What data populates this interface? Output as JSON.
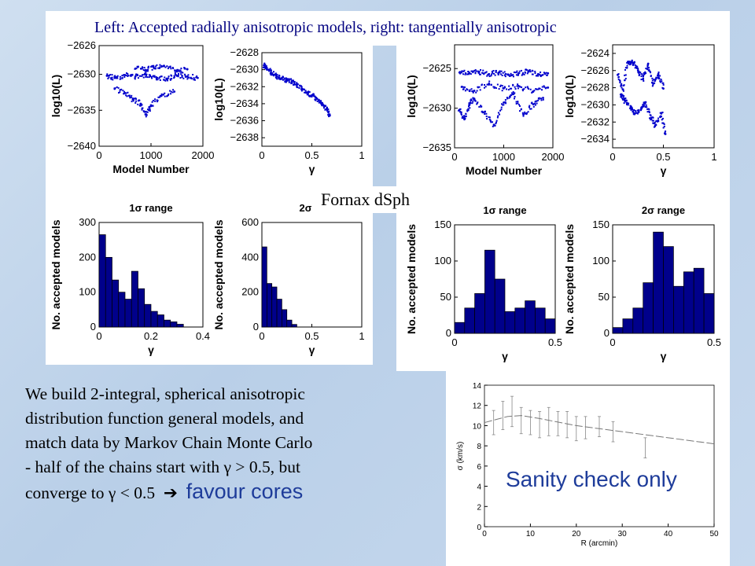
{
  "title": "Left: Accepted radially anisotropic models, right: tangentially anisotropic",
  "center_label": "Fornax dSph",
  "body_text": [
    "We build 2-integral, spherical anisotropic",
    "distribution function general models, and",
    "match data by Markov Chain Monte Carlo",
    "- half of the chains start with γ > 0.5, but",
    "converge to γ < 0.5"
  ],
  "arrow_glyph": "➔",
  "favour_text": "favour cores",
  "sanity_text": "Sanity check only",
  "colors": {
    "points": "#0000cc",
    "bars": "#00008b",
    "highlight_text": "#1e3c9a",
    "title_text": "#000080"
  },
  "chart_data": [
    {
      "id": "radial-trace",
      "type": "scatter",
      "xlabel": "Model Number",
      "ylabel": "log10(L)",
      "xlim": [
        0,
        2000
      ],
      "ylim": [
        -2640,
        -2626
      ],
      "xticks": [
        "0",
        "1000",
        "2000"
      ],
      "yticks": [
        "−2640",
        "−2635",
        "−2630",
        "−2626"
      ],
      "series": [
        {
          "x": [
            150,
            300,
            500,
            700,
            900,
            1100,
            1300,
            1500,
            1700,
            1900
          ],
          "y": [
            -2630.2,
            -2630.5,
            -2630.1,
            -2630.3,
            -2630.0,
            -2630.4,
            -2630.6,
            -2630.2,
            -2630.3,
            -2630.5
          ]
        },
        {
          "x": [
            300,
            500,
            650,
            800,
            900,
            1000,
            1200,
            1450
          ],
          "y": [
            -2632,
            -2632.6,
            -2633.5,
            -2634.1,
            -2635.6,
            -2634.3,
            -2633.0,
            -2632.4
          ]
        },
        {
          "x": [
            700,
            900,
            1050,
            1250,
            1500,
            1700
          ],
          "y": [
            -2629.2,
            -2629.4,
            -2629.0,
            -2628.8,
            -2629.6,
            -2629.3
          ]
        }
      ]
    },
    {
      "id": "radial-gamma",
      "type": "scatter",
      "xlabel": "γ",
      "ylabel": "log10(L)",
      "xlim": [
        0,
        1
      ],
      "ylim": [
        -2639,
        -2628
      ],
      "xticks": [
        "0",
        "0.5",
        "1"
      ],
      "yticks": [
        "−2638",
        "−2636",
        "−2634",
        "−2632",
        "−2630",
        "−2628"
      ],
      "series": [
        {
          "x": [
            0.02,
            0.05,
            0.1,
            0.15,
            0.2,
            0.25,
            0.3,
            0.35,
            0.4,
            0.45,
            0.5,
            0.55,
            0.6,
            0.65,
            0.68
          ],
          "y": [
            -2629.5,
            -2629.8,
            -2630.4,
            -2630.8,
            -2631.0,
            -2631.3,
            -2631.4,
            -2631.8,
            -2632.3,
            -2632.7,
            -2633.0,
            -2633.4,
            -2634.1,
            -2634.6,
            -2635.4
          ]
        }
      ]
    },
    {
      "id": "tangential-trace",
      "type": "scatter",
      "xlabel": "Model Number",
      "ylabel": "log10(L)",
      "xlim": [
        0,
        2000
      ],
      "ylim": [
        -2635,
        -2622
      ],
      "xticks": [
        "0",
        "1000",
        "2000"
      ],
      "yticks": [
        "−2635",
        "−2630",
        "−2625"
      ],
      "series": [
        {
          "x": [
            100,
            300,
            500,
            700,
            900,
            1100,
            1300,
            1500,
            1700,
            1900
          ],
          "y": [
            -2625.5,
            -2625.6,
            -2625.4,
            -2625.7,
            -2625.5,
            -2625.8,
            -2625.6,
            -2625.4,
            -2625.7,
            -2625.6
          ]
        },
        {
          "x": [
            100,
            200,
            300,
            400,
            600,
            800,
            1000,
            1200,
            1400,
            1600,
            1800
          ],
          "y": [
            -2630.2,
            -2631.4,
            -2629.6,
            -2628.8,
            -2630.5,
            -2632.1,
            -2629.3,
            -2628.2,
            -2630.8,
            -2629.5,
            -2628.7
          ]
        },
        {
          "x": [
            150,
            400,
            700,
            1000,
            1300,
            1600,
            1900
          ],
          "y": [
            -2627.3,
            -2627.8,
            -2626.9,
            -2627.5,
            -2627.2,
            -2627.9,
            -2627.4
          ]
        }
      ]
    },
    {
      "id": "tangential-gamma",
      "type": "scatter",
      "xlabel": "γ",
      "ylabel": "log10(L)",
      "xlim": [
        0,
        1
      ],
      "ylim": [
        -2635,
        -2623
      ],
      "xticks": [
        "0",
        "0.5",
        "1"
      ],
      "yticks": [
        "−2634",
        "−2632",
        "−2630",
        "−2628",
        "−2626",
        "−2624"
      ],
      "series": [
        {
          "x": [
            0.05,
            0.1,
            0.15,
            0.2,
            0.25,
            0.3,
            0.35,
            0.4,
            0.45,
            0.5
          ],
          "y": [
            -2626.5,
            -2628.2,
            -2625.0,
            -2625.1,
            -2626.0,
            -2627.0,
            -2625.2,
            -2627.5,
            -2626.4,
            -2628.1
          ]
        },
        {
          "x": [
            0.08,
            0.12,
            0.18,
            0.22,
            0.28,
            0.32,
            0.38,
            0.42,
            0.48,
            0.52
          ],
          "y": [
            -2628.8,
            -2629.5,
            -2630.3,
            -2631.0,
            -2630.5,
            -2629.8,
            -2631.5,
            -2632.4,
            -2631.0,
            -2633.4
          ]
        }
      ]
    },
    {
      "id": "radial-hist-1s",
      "type": "bar",
      "title": "1σ range",
      "xlabel": "γ",
      "ylabel": "No. accepted models",
      "xlim": [
        0,
        0.4
      ],
      "ylim": [
        0,
        300
      ],
      "xticks": [
        "0",
        "0.2",
        "0.4"
      ],
      "yticks": [
        "0",
        "100",
        "200",
        "300"
      ],
      "bin_width": 0.025,
      "values": [
        265,
        200,
        135,
        100,
        80,
        160,
        110,
        65,
        45,
        35,
        20,
        15,
        8
      ]
    },
    {
      "id": "radial-hist-2s",
      "type": "bar",
      "title": "2σ ra",
      "xlabel": "γ",
      "ylabel": "No. accepted models",
      "xlim": [
        0,
        1
      ],
      "ylim": [
        0,
        600
      ],
      "xticks": [
        "0",
        "0.5",
        "1"
      ],
      "yticks": [
        "0",
        "200",
        "400",
        "600"
      ],
      "bin_width": 0.05,
      "values": [
        460,
        250,
        230,
        160,
        100,
        40,
        15
      ]
    },
    {
      "id": "tangential-hist-1s",
      "type": "bar",
      "title": "1σ range",
      "xlabel": "γ",
      "ylabel": "No. accepted models",
      "xlim": [
        0,
        0.5
      ],
      "ylim": [
        0,
        150
      ],
      "xticks": [
        "0",
        "0.5"
      ],
      "yticks": [
        "0",
        "50",
        "100",
        "150"
      ],
      "bin_width": 0.05,
      "values": [
        15,
        35,
        55,
        115,
        75,
        30,
        35,
        45,
        35,
        20
      ]
    },
    {
      "id": "tangential-hist-2s",
      "type": "bar",
      "title": "2σ range",
      "xlabel": "γ",
      "ylabel": "No. accepted models",
      "xlim": [
        0,
        0.5
      ],
      "ylim": [
        0,
        150
      ],
      "xticks": [
        "0",
        "0.5"
      ],
      "yticks": [
        "0",
        "50",
        "100",
        "150"
      ],
      "bin_width": 0.05,
      "values": [
        8,
        20,
        35,
        70,
        140,
        120,
        65,
        85,
        90,
        55
      ]
    },
    {
      "id": "dispersion",
      "type": "line",
      "xlabel": "R (arcmin)",
      "ylabel": "σ (km/s)",
      "xlim": [
        0,
        50
      ],
      "ylim": [
        0,
        14
      ],
      "xticks": [
        "0",
        "10",
        "20",
        "30",
        "40",
        "50"
      ],
      "yticks": [
        "0",
        "2",
        "4",
        "6",
        "8",
        "10",
        "12",
        "14"
      ],
      "series": [
        {
          "name": "data",
          "x": [
            2,
            4,
            6,
            8,
            10,
            12,
            14,
            16,
            18,
            20,
            22,
            25,
            28,
            35
          ],
          "y": [
            10.3,
            11.0,
            11.4,
            10.5,
            10.3,
            10.1,
            10.4,
            10.2,
            10.1,
            9.7,
            9.8,
            9.9,
            9.4,
            7.8
          ],
          "err": [
            1.2,
            1.4,
            1.5,
            1.3,
            1.2,
            1.3,
            1.4,
            1.2,
            1.3,
            1.2,
            1.1,
            1.0,
            1.0,
            1.0
          ]
        },
        {
          "name": "model",
          "x": [
            0,
            5,
            8,
            12,
            20,
            30,
            40,
            50
          ],
          "y": [
            10.3,
            10.9,
            11.0,
            10.7,
            10.0,
            9.4,
            8.8,
            8.2
          ]
        }
      ]
    }
  ]
}
